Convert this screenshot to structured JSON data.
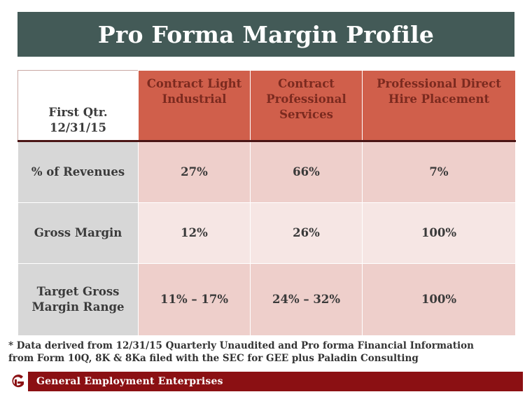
{
  "title": "Pro Forma Margin Profile",
  "table": {
    "corner_line1": "First Qtr.",
    "corner_line2": "12/31/15",
    "columns": [
      "Contract Light Industrial",
      "Contract Professional Services",
      "Professional Direct Hire Placement"
    ],
    "rows": [
      {
        "label": "% of Revenues",
        "values": [
          "27%",
          "66%",
          "7%"
        ]
      },
      {
        "label": "Gross Margin",
        "values": [
          "12%",
          "26%",
          "100%"
        ]
      },
      {
        "label": "Target Gross Margin Range",
        "values": [
          "11% – 17%",
          "24% – 32%",
          "100%"
        ]
      }
    ]
  },
  "footnote": {
    "line1": "* Data derived from 12/31/15 Quarterly Unaudited and Pro forma Financial Information",
    "line2": "from Form 10Q, 8K & 8Ka filed with the SEC for GEE plus Paladin Consulting"
  },
  "footer": {
    "company": "General Employment Enterprises",
    "logo_icon": "ge-logo-icon"
  },
  "colors": {
    "title_bg": "#435a57",
    "header_red": "#d05f4b",
    "row_label_gray": "#d7d7d7",
    "cell_pink": "#eecfcb",
    "cell_light_pink": "#f6e6e4",
    "footer_bar": "#8b1013"
  }
}
